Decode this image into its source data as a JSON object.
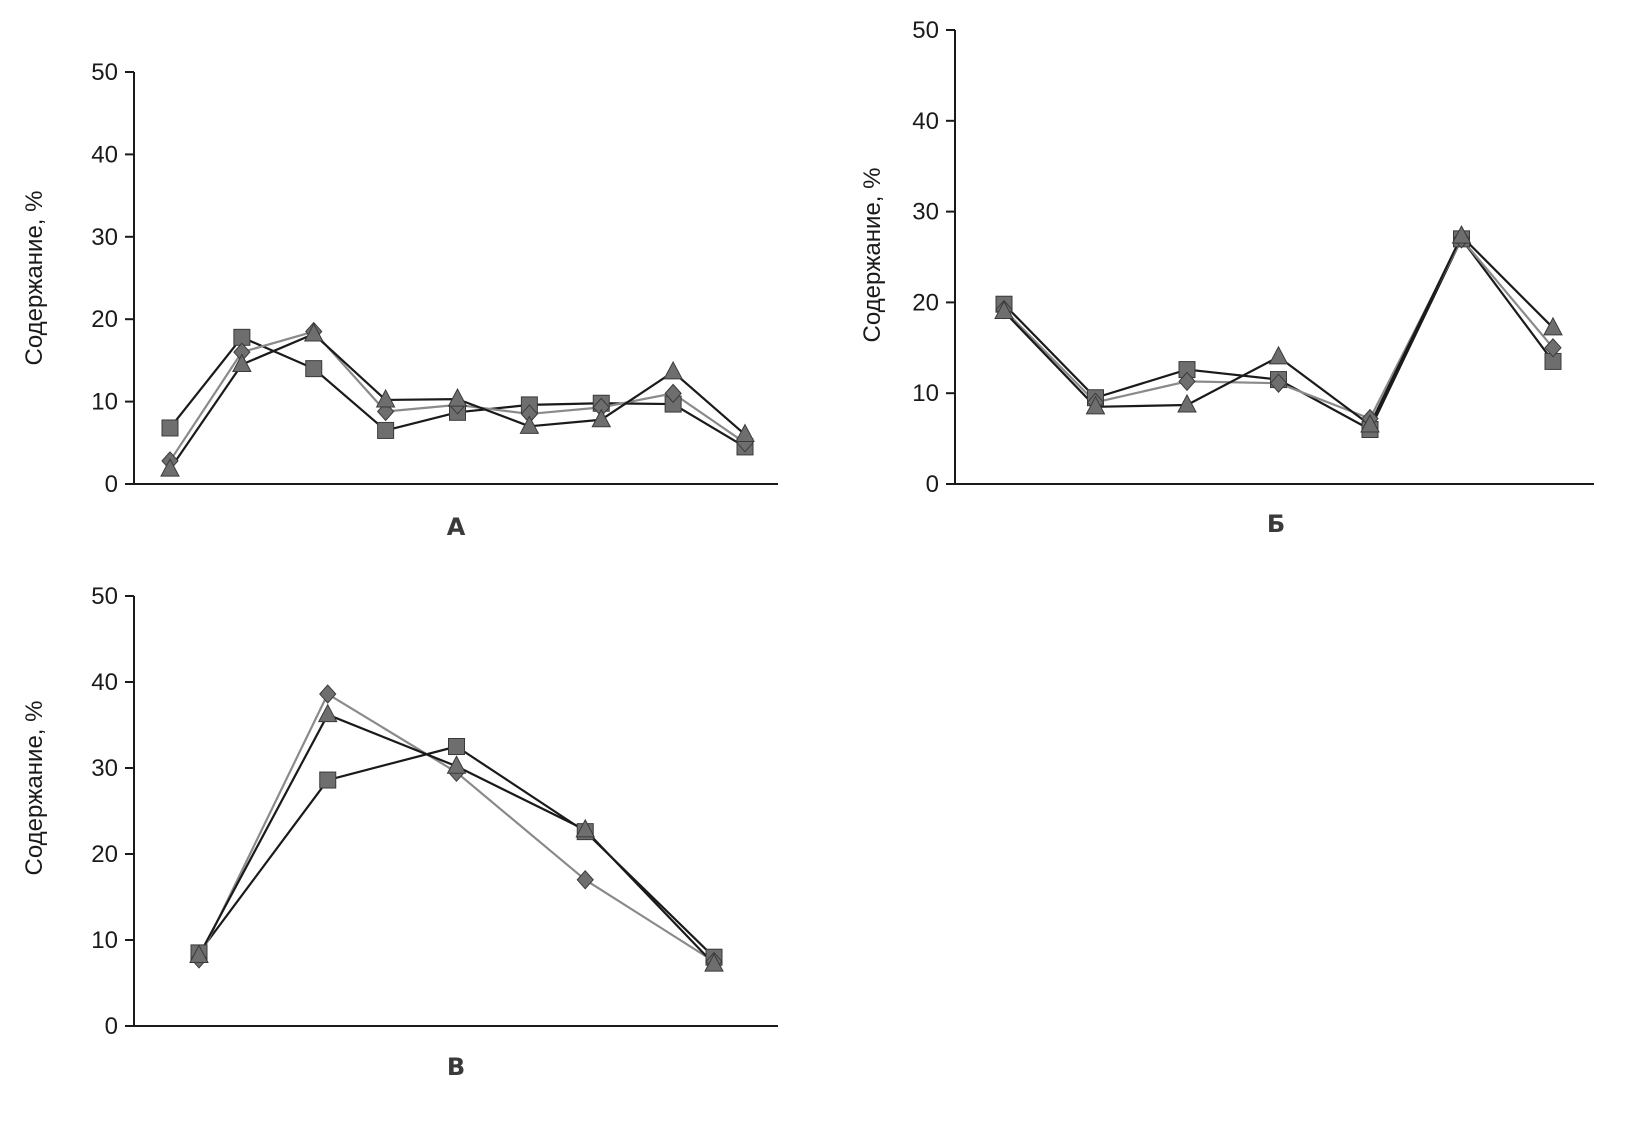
{
  "colors": {
    "line": "#1a1a1a",
    "line_light": "#8a8a8a",
    "marker": "#6e6e6e",
    "axis": "#1a1a1a"
  },
  "chart_data": [
    {
      "type": "line",
      "panel_label": "А",
      "ylabel": "Содержание, %",
      "ylim": [
        0,
        50
      ],
      "yticks": [
        "0",
        "10",
        "20",
        "30",
        "40",
        "50"
      ],
      "x": [
        1,
        2,
        3,
        4,
        5,
        6,
        7,
        8,
        9
      ],
      "series": [
        {
          "marker": "square",
          "values": [
            6.8,
            17.8,
            14.0,
            6.5,
            8.7,
            9.6,
            9.8,
            9.7,
            4.5
          ]
        },
        {
          "marker": "diamond",
          "values": [
            2.8,
            16.0,
            18.5,
            8.8,
            9.6,
            8.5,
            9.3,
            11.0,
            5.0
          ]
        },
        {
          "marker": "triangle",
          "values": [
            1.8,
            14.5,
            18.2,
            10.2,
            10.3,
            7.0,
            7.8,
            13.6,
            6.0
          ]
        }
      ]
    },
    {
      "type": "line",
      "panel_label": "Б",
      "ylabel": "Содержание, %",
      "ylim": [
        0,
        50
      ],
      "yticks": [
        "0",
        "10",
        "20",
        "30",
        "40",
        "50"
      ],
      "x": [
        1,
        2,
        3,
        4,
        5,
        6,
        7
      ],
      "series": [
        {
          "marker": "square",
          "values": [
            19.8,
            9.5,
            12.6,
            11.5,
            6.0,
            27.0,
            13.5
          ]
        },
        {
          "marker": "diamond",
          "values": [
            19.2,
            9.0,
            11.3,
            11.1,
            7.2,
            27.0,
            15.0
          ]
        },
        {
          "marker": "triangle",
          "values": [
            19.0,
            8.5,
            8.7,
            14.0,
            6.5,
            27.3,
            17.2
          ]
        }
      ]
    },
    {
      "type": "line",
      "panel_label": "В",
      "ylabel": "Содержание, %",
      "ylim": [
        0,
        50
      ],
      "yticks": [
        "0",
        "10",
        "20",
        "30",
        "40",
        "50"
      ],
      "x": [
        1,
        2,
        3,
        4,
        5
      ],
      "series": [
        {
          "marker": "square",
          "values": [
            8.5,
            28.6,
            32.5,
            22.6,
            8.0
          ]
        },
        {
          "marker": "diamond",
          "values": [
            7.8,
            38.6,
            29.5,
            17.0,
            7.5
          ]
        },
        {
          "marker": "triangle",
          "values": [
            8.2,
            36.2,
            30.2,
            22.8,
            7.2
          ]
        }
      ]
    }
  ]
}
